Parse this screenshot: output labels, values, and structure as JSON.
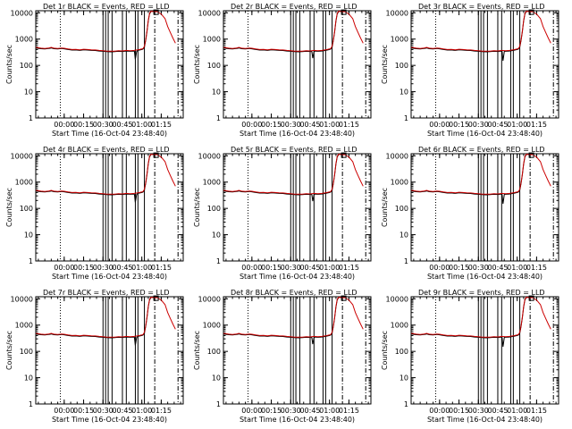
{
  "figure": {
    "x_tick_labels": [
      "00:00",
      "00:15",
      "00:30",
      "00:45",
      "01:00",
      "01:15"
    ],
    "y_tick_labels": [
      "1",
      "10",
      "100",
      "1000",
      "10000"
    ],
    "ylabel": "Counts/sec",
    "xlabel": "Start Time (16-Oct-04 23:48:40)"
  },
  "colors": {
    "events": "#000000",
    "lld": "#cc0000",
    "background": "#ffffff"
  },
  "chart_data": [
    {
      "type": "line",
      "title": "Det 1r BLACK = Events, RED = LLD",
      "xlabel": "Start Time (16-Oct-04 23:48:40)",
      "ylabel": "Counts/sec",
      "y_scale": "log",
      "ylim": [
        1,
        12000
      ],
      "xlim_minutes": [
        -22,
        92
      ],
      "dip_minute": 55,
      "dip_value": 170
    },
    {
      "type": "line",
      "title": "Det 2r BLACK = Events, RED = LLD",
      "xlabel": "Start Time (16-Oct-04 23:48:40)",
      "ylabel": "Counts/sec",
      "y_scale": "log",
      "ylim": [
        1,
        12000
      ],
      "xlim_minutes": [
        -22,
        92
      ],
      "dip_minute": 47,
      "dip_value": 190
    },
    {
      "type": "line",
      "title": "Det 3r BLACK = Events, RED = LLD",
      "xlabel": "Start Time (16-Oct-04 23:48:40)",
      "ylabel": "Counts/sec",
      "y_scale": "log",
      "ylim": [
        1,
        12000
      ],
      "xlim_minutes": [
        -22,
        92
      ],
      "dip_minute": 49,
      "dip_value": 150
    },
    {
      "type": "line",
      "title": "Det 4r BLACK = Events, RED = LLD",
      "xlabel": "Start Time (16-Oct-04 23:48:40)",
      "ylabel": "Counts/sec",
      "y_scale": "log",
      "ylim": [
        1,
        12000
      ],
      "xlim_minutes": [
        -22,
        92
      ],
      "dip_minute": 55,
      "dip_value": 170
    },
    {
      "type": "line",
      "title": "Det 5r BLACK = Events, RED = LLD",
      "xlabel": "Start Time (16-Oct-04 23:48:40)",
      "ylabel": "Counts/sec",
      "y_scale": "log",
      "ylim": [
        1,
        12000
      ],
      "xlim_minutes": [
        -22,
        92
      ],
      "dip_minute": 47,
      "dip_value": 190
    },
    {
      "type": "line",
      "title": "Det 6r BLACK = Events, RED = LLD",
      "xlabel": "Start Time (16-Oct-04 23:48:40)",
      "ylabel": "Counts/sec",
      "y_scale": "log",
      "ylim": [
        1,
        12000
      ],
      "xlim_minutes": [
        -22,
        92
      ],
      "dip_minute": 49,
      "dip_value": 150
    },
    {
      "type": "line",
      "title": "Det 7r BLACK = Events, RED = LLD",
      "xlabel": "Start Time (16-Oct-04 23:48:40)",
      "ylabel": "Counts/sec",
      "y_scale": "log",
      "ylim": [
        1,
        12000
      ],
      "xlim_minutes": [
        -22,
        92
      ],
      "dip_minute": 55,
      "dip_value": 170
    },
    {
      "type": "line",
      "title": "Det 8r BLACK = Events, RED = LLD",
      "xlabel": "Start Time (16-Oct-04 23:48:40)",
      "ylabel": "Counts/sec",
      "y_scale": "log",
      "ylim": [
        1,
        12000
      ],
      "xlim_minutes": [
        -22,
        92
      ],
      "dip_minute": 47,
      "dip_value": 190
    },
    {
      "type": "line",
      "title": "Det 9r BLACK = Events, RED = LLD",
      "xlabel": "Start Time (16-Oct-04 23:48:40)",
      "ylabel": "Counts/sec",
      "y_scale": "log",
      "ylim": [
        1,
        12000
      ],
      "xlim_minutes": [
        -22,
        92
      ],
      "dip_minute": 49,
      "dip_value": 150
    }
  ],
  "shared_series": {
    "events_and_lld_minutes": [
      -22,
      -18,
      -15,
      -12,
      -10,
      -8,
      -5,
      -2,
      0,
      3,
      6,
      9,
      12,
      15,
      18,
      21,
      24,
      27,
      30,
      33,
      36,
      39,
      42,
      45,
      48,
      51,
      54,
      57,
      60,
      61,
      62,
      63,
      64,
      65,
      66,
      67
    ],
    "events_and_lld_values": [
      470,
      440,
      430,
      445,
      470,
      440,
      430,
      445,
      435,
      410,
      390,
      395,
      380,
      400,
      390,
      380,
      375,
      360,
      350,
      340,
      335,
      340,
      350,
      345,
      360,
      350,
      360,
      380,
      410,
      430,
      520,
      900,
      2000,
      5000,
      9500,
      11000
    ],
    "lld_tail_minutes": [
      72,
      75,
      78,
      80,
      82,
      84,
      86
    ],
    "lld_tail_values": [
      11000,
      9000,
      6000,
      3000,
      1800,
      1100,
      700
    ],
    "black_vertical_lines_minutes": [
      30,
      32,
      34,
      37,
      45,
      48,
      55,
      57,
      62
    ],
    "dotted_vertical_minutes": [
      -3
    ],
    "dashdot_vertical_minutes": [
      70,
      88
    ],
    "small_marker_minute": 71,
    "small_marker_value": 11000
  }
}
